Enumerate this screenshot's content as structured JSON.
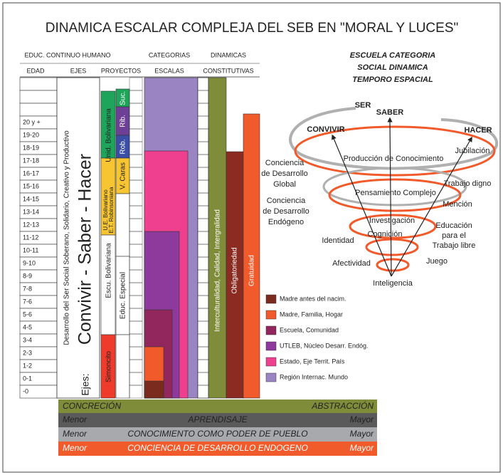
{
  "title": "DINAMICA ESCALAR COMPLEJA DEL SEB EN \"MORAL Y LUCES\"",
  "header": {
    "group1": "EDUC. CONTINUO HUMANO",
    "group2": "CATEGORIAS",
    "group3": "DINAMICAS",
    "edad": "EDAD",
    "ejes": "EJES",
    "proyectos": "PROYECTOS",
    "escalas": "ESCALAS",
    "constitutivas": "CONSTITUTIVAS"
  },
  "ages": [
    "20 y +",
    "19-20",
    "18-19",
    "17-18",
    "16-17",
    "15-16",
    "14-15",
    "13-14",
    "12-13",
    "11-12",
    "10-11",
    "9-10",
    "8-9",
    "7-8",
    "7-6",
    "5-6",
    "4-5",
    "3-4",
    "2-3",
    "1-2",
    "0-1",
    "-0"
  ],
  "ejes": {
    "desarrollo": "Desarrollo del Ser Social Soberano, Solidario, Creativo y Productivo",
    "prefix": "Ejes:",
    "main": "Convivir - Saber - Hacer"
  },
  "proyectos": {
    "suc": "Suc.",
    "rib": "Rib.",
    "rob": "Rob.",
    "unid": "Unid. Bolivariana",
    "ue": "U.E. Bolivariano",
    "et": "E.T. Robinsoniana",
    "caras": "V. Caras",
    "escu": "Escu. Bolivariana",
    "especial": "Educ. Especial",
    "simoncito": "Simoncito"
  },
  "dinamicas": {
    "inter": "Interculturalidad, Calidad, Intergralidad",
    "oblig": "Obligatoriedad",
    "grat": "Gratuidad"
  },
  "legend": [
    {
      "name": "Madre antes del nacim.",
      "color": "#7b2a1e"
    },
    {
      "name": "Madre, Familia, Hogar",
      "color": "#f15a2b"
    },
    {
      "name": "Escuela, Comunidad",
      "color": "#92275e"
    },
    {
      "name": "UTLEB, Núcleo Desarr. Endóg.",
      "color": "#8e3a9d"
    },
    {
      "name": "Estado, Eje Territ. País",
      "color": "#ef3f8f"
    },
    {
      "name": "Región Internac. Mundo",
      "color": "#9a84c2"
    }
  ],
  "bars": {
    "concrecion": "CONCRECIÓN",
    "abstraccion": "ABSTRACCIÓN",
    "menor": "Menor",
    "mayor": "Mayor",
    "aprendisaje": "APRENDISAJE",
    "conocimiento": "CONOCIMIENTO COMO PODER DE PUEBLO",
    "conciencia": "CONCIENCIA DE DESARROLLO ENDOGENO"
  },
  "right_title": [
    "ESCUELA CATEGORIA",
    "SOCIAL DINAMICA",
    "TEMPORO ESPACIAL"
  ],
  "spiral": {
    "ser": "SER",
    "saber": "SABER",
    "convivir": "CONVIVIR",
    "hacer": "HACER",
    "produccion": "Producción de Conocimiento",
    "jubilacion": "Jubilación",
    "global": [
      "Conciencia",
      "de Desarrollo",
      "Global"
    ],
    "trabajo": "Trabajo digno",
    "pensamiento": "Pensamiento Complejo",
    "endogeno": [
      "Conciencia",
      "de Desarrollo",
      "Endógeno"
    ],
    "mencion": "Mención",
    "investigacion": "Investigación",
    "educacion": [
      "Educación",
      "para el",
      "Trabajo libre"
    ],
    "cognicion": "Cognición",
    "identidad": "Identidad",
    "juego": "Juego",
    "afectividad": "Afectividad",
    "inteligencia": "Inteligencia"
  }
}
